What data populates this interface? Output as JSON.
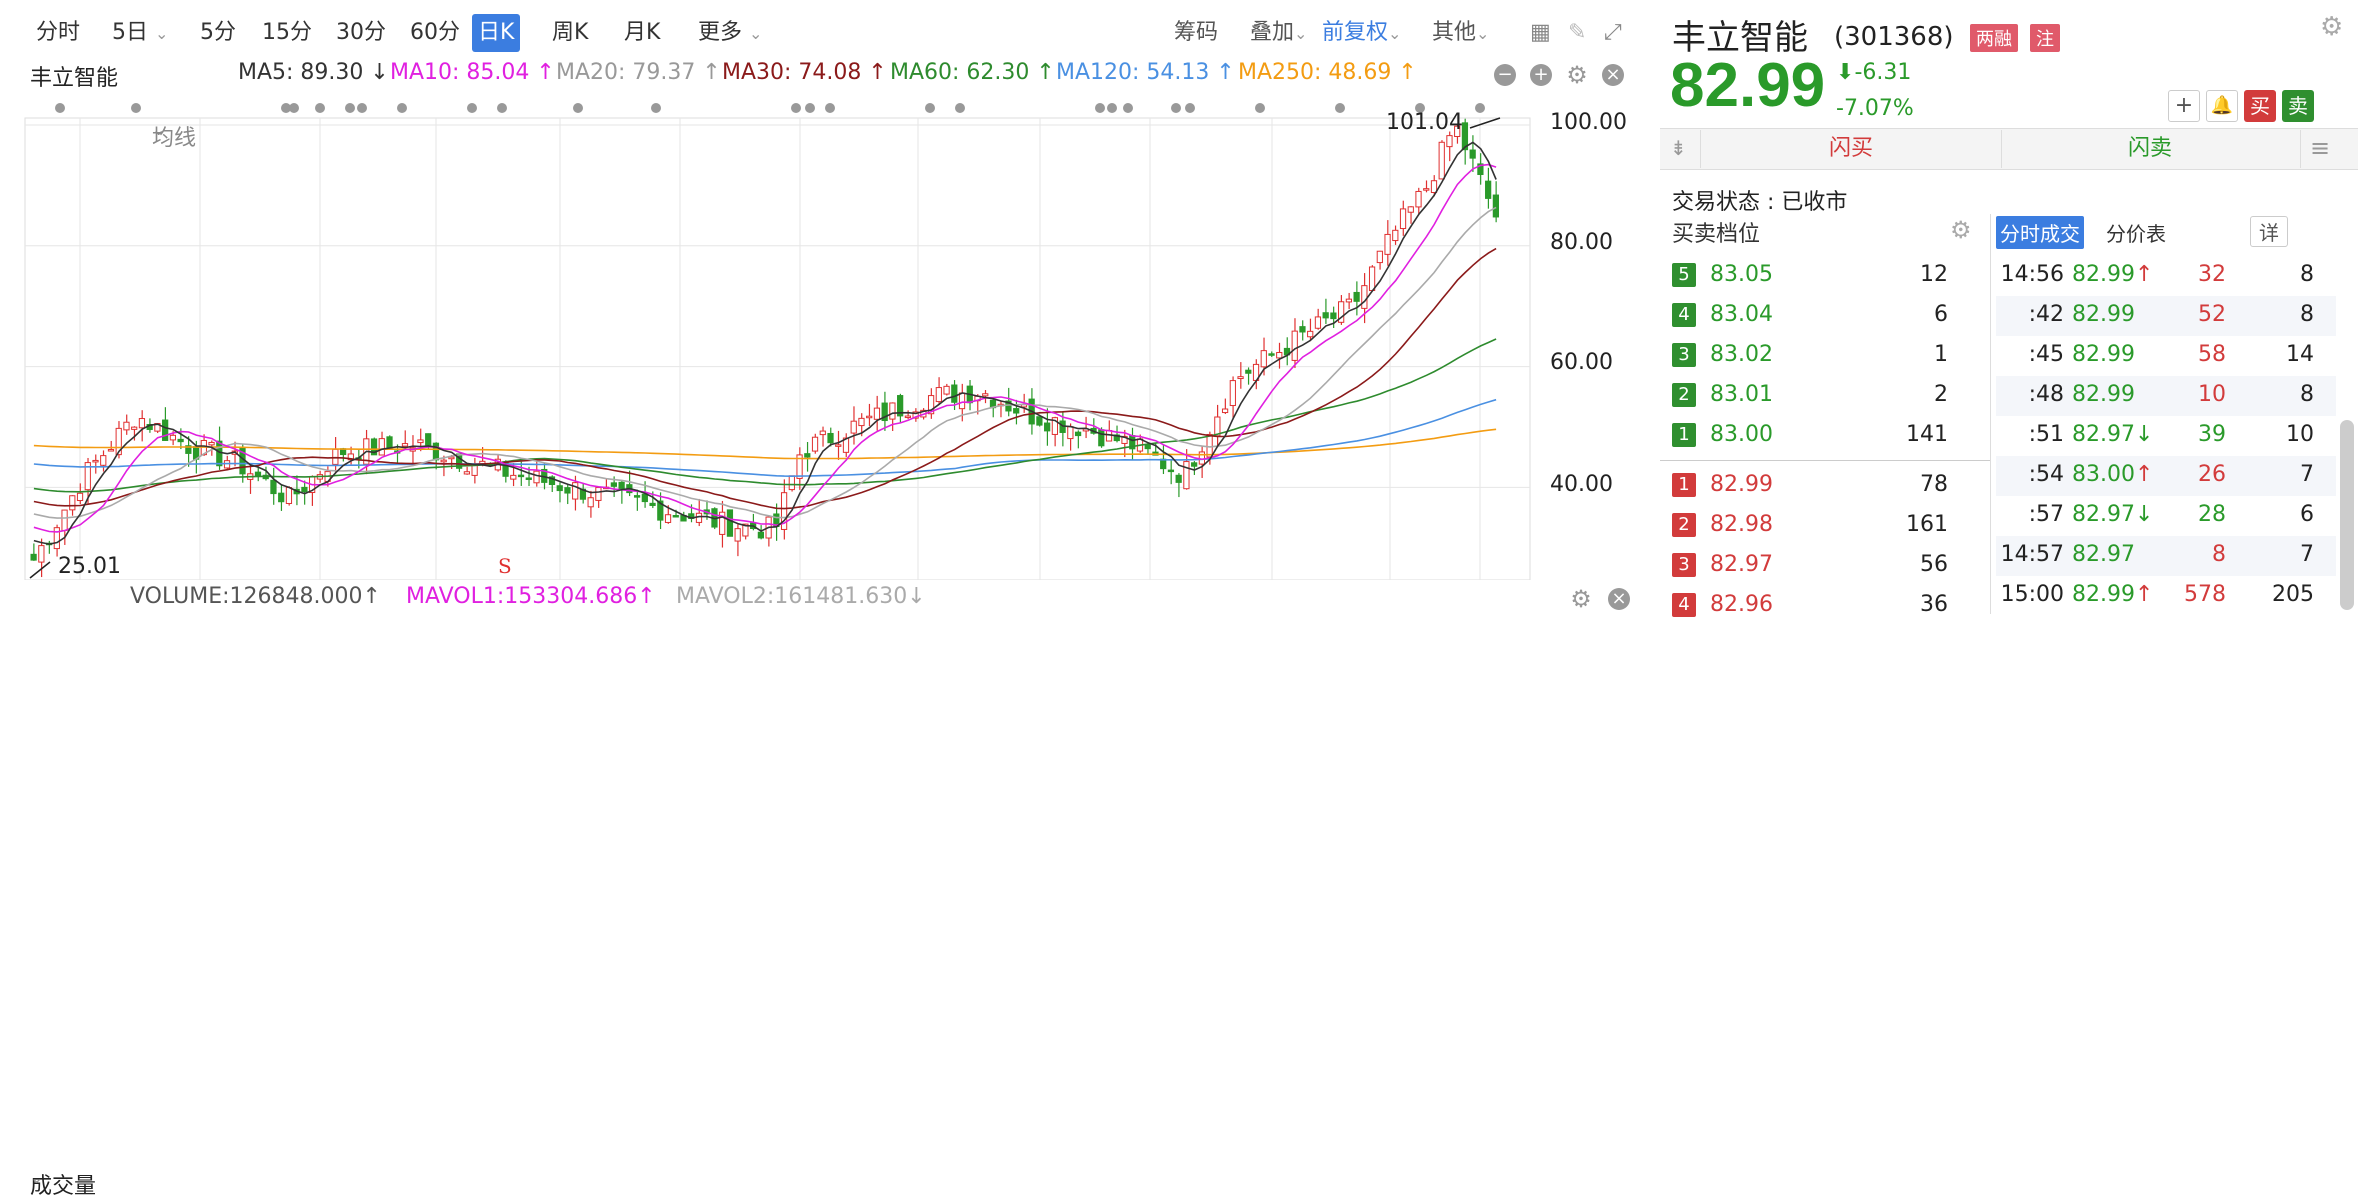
{
  "toolbar": {
    "periods": [
      "分时",
      "5日",
      "5分",
      "15分",
      "30分",
      "60分",
      "日K",
      "周K",
      "月K",
      "更多"
    ],
    "active_period": "日K",
    "chips": "筹码",
    "overlay": "叠加",
    "adjust": "前复权",
    "others": "其他"
  },
  "legend": {
    "stock_name": "丰立智能",
    "ma_type": "均线",
    "ma5": "MA5: 89.30 ↓",
    "ma10": "MA10: 85.04 ↑",
    "ma20": "MA20: 79.37 ↑",
    "ma30": "MA30: 74.08 ↑",
    "ma60": "MA60: 62.30 ↑",
    "ma120": "MA120: 54.13 ↑",
    "ma250": "MA250: 48.69 ↑"
  },
  "chart": {
    "high_label": "101.04",
    "low_label": "25.01",
    "s_marker": "S",
    "y_ticks": [
      "100.00",
      "80.00",
      "60.00",
      "40.00"
    ],
    "colors": {
      "up": "#e03030",
      "down": "#2a9a2a",
      "ma5": "#333333",
      "ma10": "#e020e0",
      "ma20": "#aaaaaa",
      "ma30": "#8b1a1a",
      "ma60": "#2e8b2e",
      "ma120": "#4a90e2",
      "ma250": "#f39c12"
    }
  },
  "volume_legend": {
    "label": "成交量",
    "volume": "VOLUME:126848.000↑",
    "mavol1": "MAVOL1:153304.686↑",
    "mavol2": "MAVOL2:161481.630↓"
  },
  "quote": {
    "name": "丰立智能",
    "code": "(301368)",
    "tag1": "两融",
    "tag2": "注",
    "price": "82.99",
    "change": "-6.31",
    "change_pct": "-7.07%",
    "buy_label": "买",
    "sell_label": "卖",
    "flash_buy": "闪买",
    "flash_sell": "闪卖",
    "status": "交易状态 : 已收市"
  },
  "orderbook": {
    "title": "买卖档位",
    "asks": [
      {
        "level": "5",
        "price": "83.05",
        "qty": "12"
      },
      {
        "level": "4",
        "price": "83.04",
        "qty": "6"
      },
      {
        "level": "3",
        "price": "83.02",
        "qty": "1"
      },
      {
        "level": "2",
        "price": "83.01",
        "qty": "2"
      },
      {
        "level": "1",
        "price": "83.00",
        "qty": "141"
      }
    ],
    "bids": [
      {
        "level": "1",
        "price": "82.99",
        "qty": "78"
      },
      {
        "level": "2",
        "price": "82.98",
        "qty": "161"
      },
      {
        "level": "3",
        "price": "82.97",
        "qty": "56"
      },
      {
        "level": "4",
        "price": "82.96",
        "qty": "36"
      }
    ]
  },
  "trades": {
    "tab_active": "分时成交",
    "tab_other": "分价表",
    "detail": "详",
    "rows": [
      {
        "time": "14:56",
        "price": "82.99↑",
        "vol": "32",
        "n": "8",
        "dir": "up"
      },
      {
        "time": ":42",
        "price": "82.99",
        "vol": "52",
        "n": "8",
        "dir": "none"
      },
      {
        "time": ":45",
        "price": "82.99",
        "vol": "58",
        "n": "14",
        "dir": "none"
      },
      {
        "time": ":48",
        "price": "82.99",
        "vol": "10",
        "n": "8",
        "dir": "none"
      },
      {
        "time": ":51",
        "price": "82.97↓",
        "vol": "39",
        "n": "10",
        "dir": "down"
      },
      {
        "time": ":54",
        "price": "83.00↑",
        "vol": "26",
        "n": "7",
        "dir": "up"
      },
      {
        "time": ":57",
        "price": "82.97↓",
        "vol": "28",
        "n": "6",
        "dir": "down"
      },
      {
        "time": "14:57",
        "price": "82.97",
        "vol": "8",
        "n": "7",
        "dir": "none"
      },
      {
        "time": "15:00",
        "price": "82.99↑",
        "vol": "578",
        "n": "205",
        "dir": "up"
      }
    ]
  }
}
